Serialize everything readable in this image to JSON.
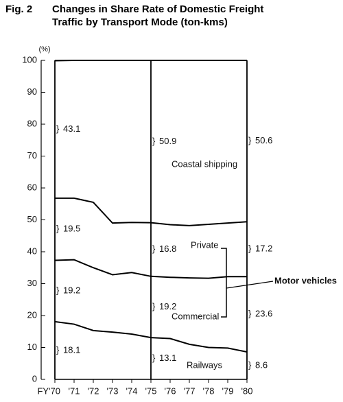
{
  "chart_data": {
    "type": "stacked_area",
    "figure_label": "Fig. 2",
    "title": "Changes in Share Rate of Domestic Freight Traffic by Transport Mode (ton-kms)",
    "y_unit": "(%)",
    "categories": [
      "FY'70",
      "'71",
      "'72",
      "'73",
      "'74",
      "'75",
      "'76",
      "'77",
      "'78",
      "'79",
      "'80"
    ],
    "series": [
      {
        "name": "Railways",
        "color": "#000000",
        "values": [
          18.1,
          17.3,
          15.3,
          14.8,
          14.2,
          13.1,
          12.8,
          11.0,
          10.0,
          9.8,
          8.6
        ]
      },
      {
        "name": "Commercial",
        "color": "#000000",
        "values": [
          19.2,
          20.2,
          19.7,
          18.0,
          19.3,
          19.2,
          19.2,
          20.8,
          21.7,
          22.4,
          23.6
        ]
      },
      {
        "name": "Private",
        "color": "#000000",
        "values": [
          19.5,
          19.3,
          20.5,
          16.2,
          15.7,
          16.8,
          16.5,
          16.4,
          16.9,
          16.8,
          17.2
        ]
      },
      {
        "name": "Coastal shipping",
        "color": "#000000",
        "values": [
          43.1,
          43.2,
          44.5,
          51.0,
          50.8,
          50.9,
          51.5,
          51.8,
          51.4,
          51.0,
          50.6
        ]
      }
    ],
    "group_annotation": "Motor vehicles",
    "ylim": [
      0,
      100
    ],
    "yticks": [
      0,
      10,
      20,
      30,
      40,
      50,
      60,
      70,
      80,
      90,
      100
    ]
  }
}
